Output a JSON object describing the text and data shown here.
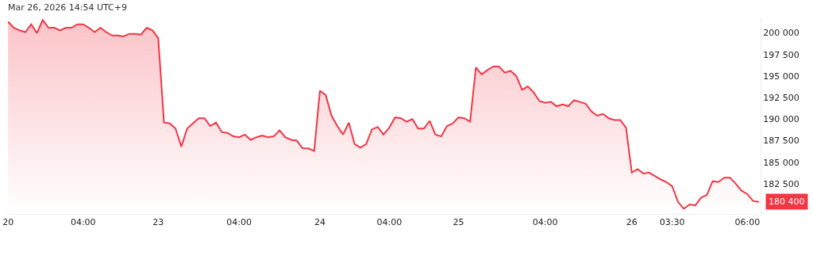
{
  "chart_data": {
    "type": "area",
    "categories": [
      "20",
      null,
      null,
      null,
      null,
      null,
      null,
      null,
      null,
      null,
      null,
      null,
      null,
      "04:00",
      null,
      null,
      null,
      null,
      null,
      null,
      null,
      null,
      null,
      null,
      null,
      null,
      "23",
      null,
      null,
      null,
      null,
      null,
      null,
      null,
      null,
      null,
      null,
      null,
      null,
      null,
      "04:00",
      null,
      null,
      null,
      null,
      null,
      null,
      null,
      null,
      null,
      null,
      null,
      null,
      null,
      "24",
      null,
      null,
      null,
      null,
      null,
      null,
      null,
      null,
      null,
      null,
      null,
      "04:00",
      null,
      null,
      null,
      null,
      null,
      null,
      null,
      null,
      null,
      null,
      null,
      "25",
      null,
      null,
      null,
      null,
      null,
      null,
      null,
      null,
      null,
      null,
      null,
      null,
      null,
      null,
      "04:00",
      null,
      null,
      null,
      null,
      null,
      null,
      null,
      null,
      null,
      null,
      null,
      null,
      null,
      null,
      "26",
      null,
      null,
      null,
      null,
      null,
      null,
      "03:30",
      null,
      null,
      null,
      null,
      null,
      null,
      null,
      null,
      null,
      null,
      null,
      null,
      "06:00",
      null,
      null
    ],
    "series": [
      {
        "color": "#f23645",
        "values": [
          201300,
          200600,
          200300,
          200100,
          201000,
          200000,
          201500,
          200600,
          200600,
          200300,
          200600,
          200600,
          201000,
          201000,
          200600,
          200100,
          200600,
          200100,
          199700,
          199700,
          199600,
          199900,
          199900,
          199800,
          200600,
          200300,
          199400,
          189600,
          189500,
          188900,
          186800,
          188900,
          189500,
          190100,
          190100,
          189200,
          189600,
          188500,
          188400,
          188000,
          187900,
          188200,
          187600,
          187900,
          188100,
          187900,
          188000,
          188700,
          187900,
          187600,
          187500,
          186600,
          186600,
          186300,
          193300,
          192800,
          190400,
          189200,
          188200,
          189600,
          187100,
          186700,
          187100,
          188800,
          189100,
          188200,
          189000,
          190200,
          190100,
          189700,
          190000,
          188900,
          188900,
          189800,
          188200,
          188000,
          189200,
          189500,
          190200,
          190100,
          189700,
          196000,
          195200,
          195700,
          196100,
          196100,
          195400,
          195600,
          195000,
          193400,
          193800,
          193100,
          192100,
          191900,
          192000,
          191500,
          191700,
          191500,
          192200,
          192000,
          191800,
          190900,
          190400,
          190600,
          190100,
          189900,
          189900,
          189000,
          183800,
          184200,
          183700,
          183800,
          183400,
          183000,
          182700,
          182200,
          180400,
          179600,
          180100,
          180000,
          180900,
          181200,
          182800,
          182700,
          183200,
          183200,
          182500,
          181700,
          181300,
          180500,
          180400
        ]
      }
    ],
    "ylim": [
      179000,
      201800
    ],
    "yticks": [
      {
        "value": 182500,
        "label": "182 500"
      },
      {
        "value": 185000,
        "label": "185 000"
      },
      {
        "value": 187500,
        "label": "187 500"
      },
      {
        "value": 190000,
        "label": "190 000"
      },
      {
        "value": 192500,
        "label": "192 500"
      },
      {
        "value": 195000,
        "label": "195 000"
      },
      {
        "value": 197500,
        "label": "197 500"
      },
      {
        "value": 200000,
        "label": "200 000"
      }
    ],
    "annotations": [
      "Mar 26, 2026 14:54 UTC+9",
      "180 400"
    ]
  }
}
